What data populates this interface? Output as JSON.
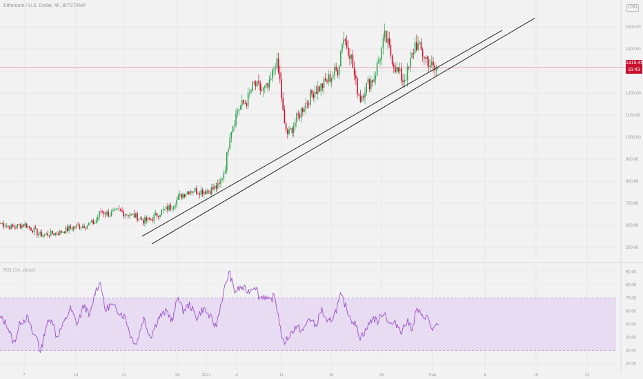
{
  "header": {
    "symbol_text": "Ethereum / U.S. Dollar, 4h, BITSTAMP"
  },
  "currency_button": "USD",
  "price_tag": {
    "price": "1315.45",
    "countdown": "31:43"
  },
  "rsi_panel": {
    "title": "RSI (14, close)"
  },
  "colors": {
    "up": "#2ea44f",
    "down": "#c8102e",
    "rsi_line": "#9c4dcc",
    "rsi_band": "#e6d9f2",
    "price_line": "#e7a0a8"
  },
  "chart_data": [
    {
      "type": "candlestick",
      "x_ticks": [
        "7",
        "14",
        "21",
        "28",
        "2021",
        "4",
        "11",
        "18",
        "25",
        "Feb",
        "8",
        "15",
        "22"
      ],
      "y_ticks": [
        500,
        600,
        700,
        800,
        900,
        1000,
        1100,
        1200,
        1300,
        1400,
        1500
      ],
      "y_tick_labels": [
        "500.00",
        "600.00",
        "700.00",
        "800.00",
        "900.00",
        "1000.00",
        "1100.00",
        "1200.00",
        "1300.00",
        "1400.00",
        "1500.00"
      ],
      "ylim": [
        440,
        1560
      ],
      "current_price": 1315.45,
      "anchor_closes": [
        [
          0,
          610
        ],
        [
          18,
          590
        ],
        [
          35,
          605
        ],
        [
          50,
          575
        ],
        [
          58,
          555
        ],
        [
          70,
          560
        ],
        [
          85,
          565
        ],
        [
          100,
          585
        ],
        [
          112,
          595
        ],
        [
          125,
          600
        ],
        [
          138,
          615
        ],
        [
          146,
          665
        ],
        [
          158,
          650
        ],
        [
          172,
          665
        ],
        [
          185,
          650
        ],
        [
          198,
          640
        ],
        [
          208,
          620
        ],
        [
          218,
          625
        ],
        [
          233,
          660
        ],
        [
          248,
          685
        ],
        [
          262,
          735
        ],
        [
          275,
          760
        ],
        [
          290,
          755
        ],
        [
          305,
          760
        ],
        [
          318,
          780
        ],
        [
          327,
          870
        ],
        [
          333,
          1015
        ],
        [
          345,
          1130
        ],
        [
          358,
          1165
        ],
        [
          368,
          1240
        ],
        [
          380,
          1210
        ],
        [
          390,
          1225
        ],
        [
          400,
          1350
        ],
        [
          406,
          1250
        ],
        [
          412,
          1050
        ],
        [
          418,
          1010
        ],
        [
          428,
          1070
        ],
        [
          440,
          1140
        ],
        [
          455,
          1210
        ],
        [
          466,
          1230
        ],
        [
          478,
          1270
        ],
        [
          490,
          1310
        ],
        [
          497,
          1460
        ],
        [
          508,
          1380
        ],
        [
          515,
          1250
        ],
        [
          522,
          1175
        ],
        [
          530,
          1230
        ],
        [
          542,
          1270
        ],
        [
          550,
          1360
        ],
        [
          558,
          1455
        ],
        [
          566,
          1380
        ],
        [
          574,
          1310
        ],
        [
          584,
          1260
        ],
        [
          592,
          1300
        ],
        [
          602,
          1430
        ],
        [
          612,
          1380
        ],
        [
          622,
          1340
        ],
        [
          630,
          1300
        ],
        [
          636,
          1315
        ]
      ],
      "trend_lines": [
        {
          "from": [
            206,
            550
          ],
          "to": [
            728,
            1485
          ]
        },
        {
          "from": [
            220,
            515
          ],
          "to": [
            775,
            1540
          ]
        }
      ]
    },
    {
      "type": "line",
      "title": "RSI (14, close)",
      "y_ticks": [
        20,
        30,
        40,
        50,
        60,
        70,
        80,
        90
      ],
      "y_tick_labels": [
        "20.00",
        "30.00",
        "40.00",
        "50.00",
        "60.00",
        "70.00",
        "80.00",
        "90.00"
      ],
      "ylim": [
        16,
        95
      ],
      "band": [
        30,
        70
      ],
      "anchors": [
        [
          0,
          55
        ],
        [
          10,
          50
        ],
        [
          20,
          35
        ],
        [
          30,
          52
        ],
        [
          40,
          55
        ],
        [
          48,
          42
        ],
        [
          55,
          40
        ],
        [
          58,
          26
        ],
        [
          66,
          48
        ],
        [
          75,
          55
        ],
        [
          82,
          40
        ],
        [
          92,
          50
        ],
        [
          102,
          62
        ],
        [
          112,
          50
        ],
        [
          122,
          65
        ],
        [
          130,
          55
        ],
        [
          138,
          75
        ],
        [
          146,
          83
        ],
        [
          152,
          60
        ],
        [
          160,
          65
        ],
        [
          172,
          60
        ],
        [
          182,
          55
        ],
        [
          190,
          40
        ],
        [
          198,
          35
        ],
        [
          208,
          55
        ],
        [
          218,
          40
        ],
        [
          230,
          55
        ],
        [
          242,
          60
        ],
        [
          250,
          52
        ],
        [
          258,
          72
        ],
        [
          265,
          60
        ],
        [
          275,
          65
        ],
        [
          285,
          55
        ],
        [
          295,
          62
        ],
        [
          305,
          55
        ],
        [
          313,
          48
        ],
        [
          320,
          65
        ],
        [
          326,
          78
        ],
        [
          332,
          90
        ],
        [
          340,
          75
        ],
        [
          350,
          78
        ],
        [
          360,
          75
        ],
        [
          370,
          80
        ],
        [
          376,
          70
        ],
        [
          383,
          72
        ],
        [
          390,
          67
        ],
        [
          398,
          72
        ],
        [
          404,
          55
        ],
        [
          410,
          35
        ],
        [
          418,
          40
        ],
        [
          428,
          48
        ],
        [
          440,
          45
        ],
        [
          448,
          55
        ],
        [
          458,
          48
        ],
        [
          466,
          62
        ],
        [
          474,
          50
        ],
        [
          482,
          55
        ],
        [
          488,
          62
        ],
        [
          494,
          72
        ],
        [
          500,
          65
        ],
        [
          508,
          55
        ],
        [
          515,
          50
        ],
        [
          522,
          40
        ],
        [
          530,
          45
        ],
        [
          540,
          55
        ],
        [
          548,
          52
        ],
        [
          556,
          60
        ],
        [
          565,
          50
        ],
        [
          575,
          50
        ],
        [
          582,
          45
        ],
        [
          590,
          52
        ],
        [
          598,
          47
        ],
        [
          604,
          62
        ],
        [
          612,
          55
        ],
        [
          618,
          57
        ],
        [
          626,
          46
        ],
        [
          630,
          47
        ],
        [
          636,
          49
        ]
      ]
    }
  ]
}
